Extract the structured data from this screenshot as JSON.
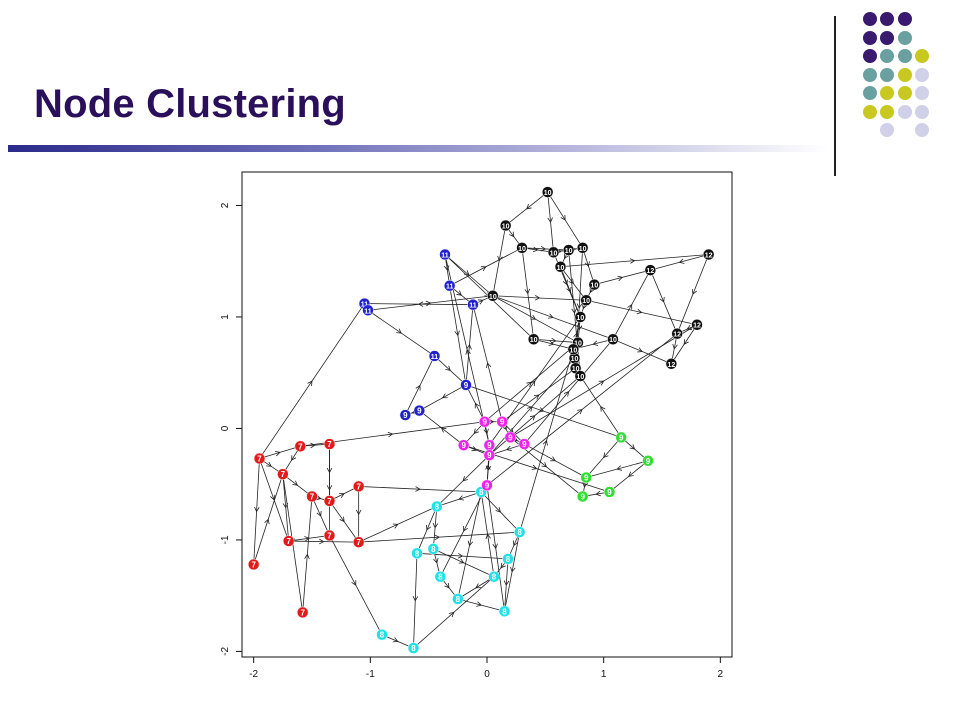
{
  "slide": {
    "title": "Node Clustering"
  },
  "decor_dots": {
    "colors": {
      "purple": "#3a1a6e",
      "teal": "#6aa0a0",
      "olive": "#c8c820",
      "lavender": "#d0d0e8"
    },
    "grid": [
      [
        "",
        "purple",
        "purple",
        "purple",
        ""
      ],
      [
        "",
        "purple",
        "purple",
        "teal",
        ""
      ],
      [
        "",
        "purple",
        "teal",
        "teal",
        "olive"
      ],
      [
        "",
        "teal",
        "teal",
        "olive",
        "lavender"
      ],
      [
        "",
        "teal",
        "olive",
        "olive",
        "lavender"
      ],
      [
        "",
        "olive",
        "olive",
        "lavender",
        "lavender"
      ],
      [
        "",
        "",
        "lavender",
        "",
        "lavender"
      ]
    ]
  },
  "chart_data": {
    "type": "scatter",
    "title": "",
    "xlabel": "",
    "ylabel": "",
    "xlim": [
      -2.1,
      2.1
    ],
    "ylim": [
      -2.05,
      2.3
    ],
    "xticks": [
      "-2",
      "-1",
      "0",
      "1",
      "2"
    ],
    "xtick_values": [
      -2,
      -1,
      0,
      1,
      2
    ],
    "yticks": [
      "-2",
      "-1",
      "0",
      "1",
      "2"
    ],
    "ytick_values": [
      -2,
      -1,
      0,
      1,
      2
    ],
    "cluster_colors": {
      "7": "#e11b1b",
      "8": "#22e0e8",
      "9": "#ee22ee",
      "9g": "#33dd33",
      "10": "#111111",
      "11": "#2222cc",
      "12": "#111111",
      "9b": "#2222cc"
    },
    "nodes": [
      {
        "id": 0,
        "label": "7",
        "color": "7",
        "x": -1.95,
        "y": -0.27
      },
      {
        "id": 1,
        "label": "7",
        "color": "7",
        "x": -1.6,
        "y": -0.16
      },
      {
        "id": 2,
        "label": "7",
        "color": "7",
        "x": -1.35,
        "y": -0.14
      },
      {
        "id": 3,
        "label": "7",
        "color": "7",
        "x": -1.75,
        "y": -0.41
      },
      {
        "id": 4,
        "label": "7",
        "color": "7",
        "x": -1.5,
        "y": -0.61
      },
      {
        "id": 5,
        "label": "7",
        "color": "7",
        "x": -1.35,
        "y": -0.65
      },
      {
        "id": 6,
        "label": "7",
        "color": "7",
        "x": -1.1,
        "y": -0.52
      },
      {
        "id": 7,
        "label": "7",
        "color": "7",
        "x": -1.7,
        "y": -1.01
      },
      {
        "id": 8,
        "label": "7",
        "color": "7",
        "x": -1.35,
        "y": -0.96
      },
      {
        "id": 9,
        "label": "7",
        "color": "7",
        "x": -1.1,
        "y": -1.02
      },
      {
        "id": 10,
        "label": "7",
        "color": "7",
        "x": -2.0,
        "y": -1.22
      },
      {
        "id": 11,
        "label": "7",
        "color": "7",
        "x": -1.58,
        "y": -1.65
      },
      {
        "id": 12,
        "label": "8",
        "color": "8",
        "x": -0.05,
        "y": -0.57
      },
      {
        "id": 13,
        "label": "8",
        "color": "8",
        "x": -0.43,
        "y": -0.7
      },
      {
        "id": 14,
        "label": "8",
        "color": "8",
        "x": -0.46,
        "y": -1.08
      },
      {
        "id": 15,
        "label": "8",
        "color": "8",
        "x": -0.6,
        "y": -1.12
      },
      {
        "id": 16,
        "label": "8",
        "color": "8",
        "x": 0.28,
        "y": -0.93
      },
      {
        "id": 17,
        "label": "8",
        "color": "8",
        "x": 0.18,
        "y": -1.17
      },
      {
        "id": 18,
        "label": "8",
        "color": "8",
        "x": -0.4,
        "y": -1.33
      },
      {
        "id": 19,
        "label": "8",
        "color": "8",
        "x": 0.06,
        "y": -1.33
      },
      {
        "id": 20,
        "label": "8",
        "color": "8",
        "x": -0.25,
        "y": -1.53
      },
      {
        "id": 21,
        "label": "8",
        "color": "8",
        "x": 0.15,
        "y": -1.64
      },
      {
        "id": 22,
        "label": "8",
        "color": "8",
        "x": -0.9,
        "y": -1.85
      },
      {
        "id": 23,
        "label": "8",
        "color": "8",
        "x": -0.63,
        "y": -1.97
      },
      {
        "id": 24,
        "label": "9",
        "color": "9",
        "x": -0.02,
        "y": 0.06
      },
      {
        "id": 25,
        "label": "9",
        "color": "9",
        "x": 0.13,
        "y": 0.06
      },
      {
        "id": 26,
        "label": "9",
        "color": "9",
        "x": -0.2,
        "y": -0.15
      },
      {
        "id": 27,
        "label": "9",
        "color": "9",
        "x": 0.02,
        "y": -0.15
      },
      {
        "id": 28,
        "label": "9",
        "color": "9",
        "x": 0.2,
        "y": -0.08
      },
      {
        "id": 29,
        "label": "9",
        "color": "9",
        "x": 0.32,
        "y": -0.14
      },
      {
        "id": 30,
        "label": "9",
        "color": "9",
        "x": 0.02,
        "y": -0.24
      },
      {
        "id": 31,
        "label": "9",
        "color": "9",
        "x": 0.0,
        "y": -0.51
      },
      {
        "id": 32,
        "label": "9",
        "color": "9g",
        "x": 1.15,
        "y": -0.08
      },
      {
        "id": 33,
        "label": "9",
        "color": "9g",
        "x": 1.38,
        "y": -0.29
      },
      {
        "id": 34,
        "label": "9",
        "color": "9g",
        "x": 0.85,
        "y": -0.44
      },
      {
        "id": 35,
        "label": "9",
        "color": "9g",
        "x": 1.05,
        "y": -0.57
      },
      {
        "id": 36,
        "label": "9",
        "color": "9g",
        "x": 0.82,
        "y": -0.61
      },
      {
        "id": 37,
        "label": "9",
        "color": "9b",
        "x": -0.18,
        "y": 0.39
      },
      {
        "id": 38,
        "label": "9",
        "color": "9b",
        "x": -0.58,
        "y": 0.16
      },
      {
        "id": 39,
        "label": "9",
        "color": "9b",
        "x": -0.7,
        "y": 0.12
      },
      {
        "id": 40,
        "label": "11",
        "color": "11",
        "x": -0.36,
        "y": 1.56
      },
      {
        "id": 41,
        "label": "11",
        "color": "11",
        "x": -0.32,
        "y": 1.28
      },
      {
        "id": 42,
        "label": "11",
        "color": "11",
        "x": -0.12,
        "y": 1.11
      },
      {
        "id": 43,
        "label": "11",
        "color": "11",
        "x": -1.05,
        "y": 1.12
      },
      {
        "id": 44,
        "label": "11",
        "color": "11",
        "x": -1.02,
        "y": 1.06
      },
      {
        "id": 45,
        "label": "11",
        "color": "11",
        "x": -0.45,
        "y": 0.65
      },
      {
        "id": 46,
        "label": "10",
        "color": "10",
        "x": 0.52,
        "y": 2.12
      },
      {
        "id": 47,
        "label": "10",
        "color": "10",
        "x": 0.16,
        "y": 1.82
      },
      {
        "id": 48,
        "label": "10",
        "color": "10",
        "x": 0.3,
        "y": 1.62
      },
      {
        "id": 49,
        "label": "10",
        "color": "10",
        "x": 0.57,
        "y": 1.58
      },
      {
        "id": 50,
        "label": "10",
        "color": "10",
        "x": 0.7,
        "y": 1.6
      },
      {
        "id": 51,
        "label": "10",
        "color": "10",
        "x": 0.82,
        "y": 1.62
      },
      {
        "id": 52,
        "label": "10",
        "color": "10",
        "x": 0.63,
        "y": 1.45
      },
      {
        "id": 53,
        "label": "10",
        "color": "10",
        "x": 0.05,
        "y": 1.19
      },
      {
        "id": 54,
        "label": "10",
        "color": "10",
        "x": 0.92,
        "y": 1.29
      },
      {
        "id": 55,
        "label": "10",
        "color": "10",
        "x": 0.85,
        "y": 1.15
      },
      {
        "id": 56,
        "label": "10",
        "color": "10",
        "x": 0.8,
        "y": 1.0
      },
      {
        "id": 57,
        "label": "10",
        "color": "10",
        "x": 0.4,
        "y": 0.8
      },
      {
        "id": 58,
        "label": "10",
        "color": "10",
        "x": 0.78,
        "y": 0.77
      },
      {
        "id": 59,
        "label": "10",
        "color": "10",
        "x": 0.75,
        "y": 0.63
      },
      {
        "id": 60,
        "label": "10",
        "color": "10",
        "x": 0.76,
        "y": 0.54
      },
      {
        "id": 61,
        "label": "10",
        "color": "10",
        "x": 0.8,
        "y": 0.47
      },
      {
        "id": 62,
        "label": "10",
        "color": "10",
        "x": 1.08,
        "y": 0.8
      },
      {
        "id": 63,
        "label": "10",
        "color": "10",
        "x": 0.74,
        "y": 0.71
      },
      {
        "id": 64,
        "label": "12",
        "color": "12",
        "x": 1.9,
        "y": 1.56
      },
      {
        "id": 65,
        "label": "12",
        "color": "12",
        "x": 1.4,
        "y": 1.42
      },
      {
        "id": 66,
        "label": "12",
        "color": "12",
        "x": 1.8,
        "y": 0.93
      },
      {
        "id": 67,
        "label": "12",
        "color": "12",
        "x": 1.63,
        "y": 0.85
      },
      {
        "id": 68,
        "label": "12",
        "color": "12",
        "x": 1.58,
        "y": 0.58
      }
    ],
    "edges": [
      [
        0,
        1
      ],
      [
        0,
        3
      ],
      [
        0,
        7
      ],
      [
        0,
        10
      ],
      [
        0,
        43
      ],
      [
        1,
        2
      ],
      [
        1,
        3
      ],
      [
        1,
        24
      ],
      [
        2,
        5
      ],
      [
        2,
        8
      ],
      [
        3,
        4
      ],
      [
        3,
        7
      ],
      [
        3,
        11
      ],
      [
        4,
        5
      ],
      [
        4,
        8
      ],
      [
        5,
        6
      ],
      [
        5,
        9
      ],
      [
        6,
        12
      ],
      [
        6,
        9
      ],
      [
        7,
        8
      ],
      [
        7,
        9
      ],
      [
        8,
        22
      ],
      [
        9,
        16
      ],
      [
        9,
        13
      ],
      [
        10,
        3
      ],
      [
        11,
        4
      ],
      [
        12,
        13
      ],
      [
        12,
        16
      ],
      [
        12,
        31
      ],
      [
        13,
        14
      ],
      [
        13,
        15
      ],
      [
        14,
        18
      ],
      [
        14,
        19
      ],
      [
        15,
        17
      ],
      [
        15,
        23
      ],
      [
        16,
        17
      ],
      [
        16,
        21
      ],
      [
        17,
        19
      ],
      [
        17,
        21
      ],
      [
        18,
        20
      ],
      [
        19,
        20
      ],
      [
        19,
        12
      ],
      [
        20,
        21
      ],
      [
        22,
        23
      ],
      [
        23,
        19
      ],
      [
        12,
        20
      ],
      [
        31,
        18
      ],
      [
        24,
        25
      ],
      [
        24,
        26
      ],
      [
        24,
        27
      ],
      [
        25,
        28
      ],
      [
        25,
        29
      ],
      [
        26,
        30
      ],
      [
        27,
        30
      ],
      [
        28,
        29
      ],
      [
        29,
        30
      ],
      [
        30,
        31
      ],
      [
        31,
        27
      ],
      [
        24,
        37
      ],
      [
        25,
        42
      ],
      [
        26,
        38
      ],
      [
        27,
        40
      ],
      [
        29,
        34
      ],
      [
        28,
        36
      ],
      [
        31,
        21
      ],
      [
        30,
        13
      ],
      [
        32,
        33
      ],
      [
        32,
        34
      ],
      [
        33,
        35
      ],
      [
        34,
        36
      ],
      [
        35,
        36
      ],
      [
        33,
        34
      ],
      [
        32,
        61
      ],
      [
        37,
        42
      ],
      [
        37,
        38
      ],
      [
        38,
        39
      ],
      [
        39,
        45
      ],
      [
        37,
        32
      ],
      [
        26,
        35
      ],
      [
        28,
        66
      ],
      [
        31,
        67
      ],
      [
        30,
        59
      ],
      [
        40,
        41
      ],
      [
        40,
        53
      ],
      [
        40,
        57
      ],
      [
        41,
        42
      ],
      [
        41,
        37
      ],
      [
        42,
        43
      ],
      [
        42,
        53
      ],
      [
        43,
        44
      ],
      [
        44,
        45
      ],
      [
        45,
        37
      ],
      [
        46,
        47
      ],
      [
        46,
        49
      ],
      [
        46,
        51
      ],
      [
        47,
        48
      ],
      [
        47,
        53
      ],
      [
        48,
        49
      ],
      [
        48,
        57
      ],
      [
        49,
        50
      ],
      [
        50,
        51
      ],
      [
        50,
        52
      ],
      [
        51,
        54
      ],
      [
        52,
        55
      ],
      [
        52,
        56
      ],
      [
        53,
        55
      ],
      [
        53,
        62
      ],
      [
        54,
        55
      ],
      [
        54,
        65
      ],
      [
        55,
        56
      ],
      [
        56,
        58
      ],
      [
        57,
        58
      ],
      [
        58,
        59
      ],
      [
        59,
        60
      ],
      [
        60,
        61
      ],
      [
        61,
        63
      ],
      [
        63,
        56
      ],
      [
        62,
        63
      ],
      [
        62,
        65
      ],
      [
        64,
        65
      ],
      [
        64,
        67
      ],
      [
        65,
        67
      ],
      [
        66,
        67
      ],
      [
        67,
        68
      ],
      [
        66,
        68
      ],
      [
        62,
        68
      ],
      [
        57,
        63
      ],
      [
        49,
        56
      ],
      [
        51,
        60
      ],
      [
        48,
        50
      ],
      [
        53,
        58
      ],
      [
        44,
        53
      ],
      [
        50,
        61
      ],
      [
        41,
        48
      ],
      [
        52,
        64
      ],
      [
        55,
        66
      ],
      [
        27,
        56
      ],
      [
        24,
        58
      ],
      [
        25,
        60
      ],
      [
        16,
        63
      ],
      [
        29,
        62
      ],
      [
        30,
        61
      ]
    ]
  }
}
